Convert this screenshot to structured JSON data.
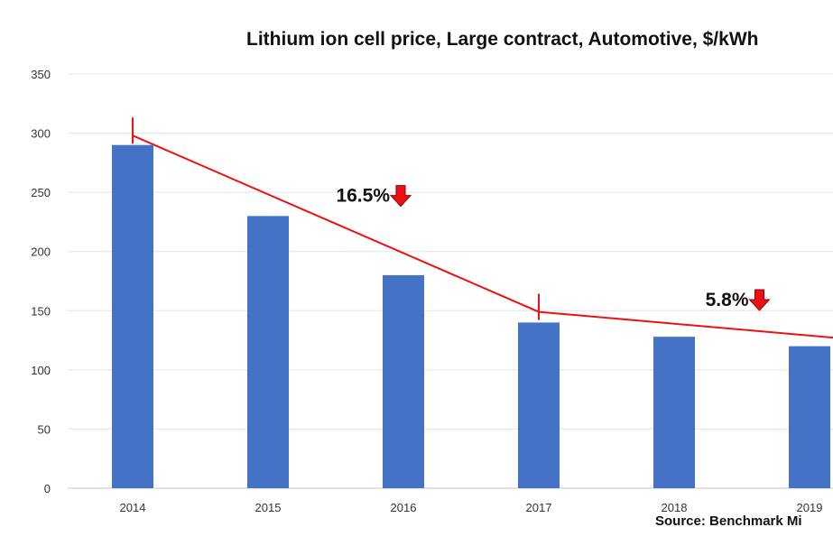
{
  "chart_data": {
    "type": "bar",
    "title": "Lithium ion cell price, Large contract, Automotive, $/kWh",
    "categories": [
      "2014",
      "2015",
      "2016",
      "2017",
      "2018",
      "2019"
    ],
    "values": [
      290,
      230,
      180,
      140,
      128,
      120
    ],
    "ylim": [
      0,
      350
    ],
    "yticks": [
      0,
      50,
      100,
      150,
      200,
      250,
      300,
      350
    ],
    "bar_color": "#4472c4",
    "trend_color": "#ee1111",
    "trend_line": {
      "points": [
        [
          2014,
          298
        ],
        [
          2017,
          149
        ],
        [
          2019.2,
          127
        ]
      ]
    },
    "annotations": [
      {
        "text": "16.5%",
        "x": 2015.9,
        "y": 242,
        "arrow": "down-arrow-icon"
      },
      {
        "text": "5.8%",
        "x": 2018.55,
        "y": 154,
        "arrow": "down-arrow-icon"
      }
    ],
    "source": "Source: Benchmark Mi",
    "grid": true
  }
}
